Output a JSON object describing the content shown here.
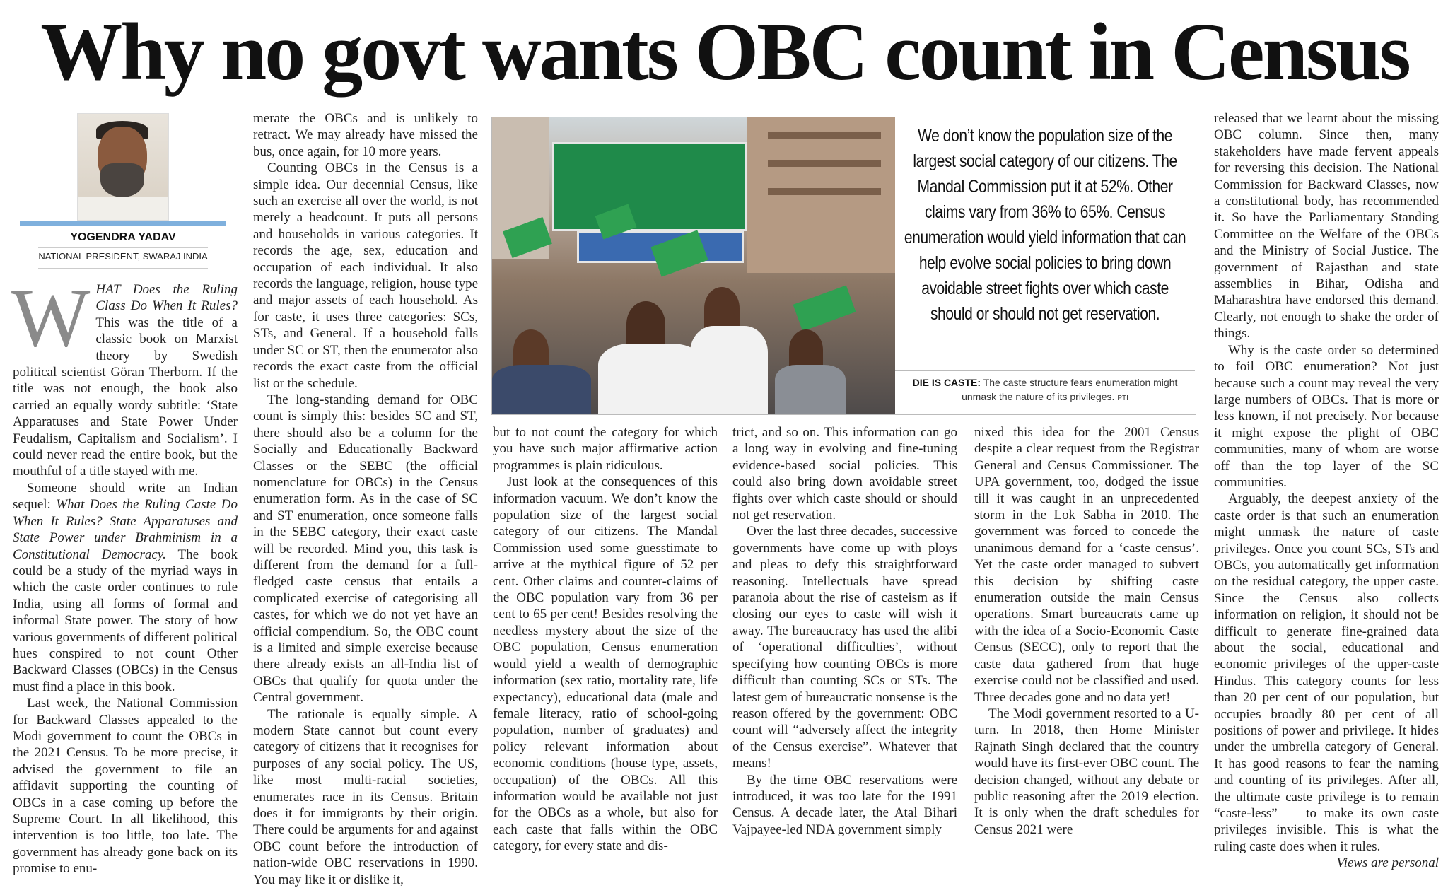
{
  "headline": "Why no govt wants OBC count in Census",
  "byline": {
    "name": "YOGENDRA YADAV",
    "title": "NATIONAL PRESIDENT, SWARAJ INDIA"
  },
  "figure": {
    "pull_quote": "We don’t know the population size of the largest social category of our citizens. The Mandal Commission put it at 52%. Other claims vary from 36% to 65%. Census enumeration would yield information that can help evolve social policies to bring down avoidable street fights over which caste should or should not get reservation.",
    "caption_label": "DIE IS CASTE:",
    "caption_text": " The caste structure fears enumeration might unmask the nature of its privileges.",
    "credit": "PTI"
  },
  "col1": {
    "dropcap": "W",
    "p1_italic": "HAT Does the Ruling Class Do When It Rules?",
    "p1_text": " This was the title of a classic book on Marxist theory by Swedish political scientist Göran Therborn. If the title was not enough, the book also carried an equally wordy subtitle: ‘State Apparatuses and State Power Under Feudalism, Capitalism and Socialism’. I could never read the entire book, but the mouthful of a title stayed with me.",
    "p2_start": "Someone should write an Indian sequel: ",
    "p2_italic": "What Does the Ruling Caste Do When It Rules? State Apparatuses and State Power under Brahminism in a Constitutional Democracy.",
    "p2_text": " The book could be a study of the myriad ways in which the caste order continues to rule India, using all forms of formal and informal State power. The story of how various governments of different political hues conspired to not count Other Backward Classes (OBCs) in the Census must find a place in this book.",
    "p3": "Last week, the National Commission for Backward Classes appealed to the Modi government to count the OBCs in the 2021 Census. To be more precise, it advised the government to file an affidavit supporting the counting of OBCs in a case coming up before the Supreme Court. In all likelihood, this intervention is too little, too late. The government has already gone back on its promise to enu-"
  },
  "col2": {
    "p0": "merate the OBCs and is unlikely to retract. We may already have missed the bus, once again, for 10 more years.",
    "p1": "Counting OBCs in the Census is a simple idea. Our decennial Census, like such an exercise all over the world, is not merely a headcount. It puts all persons and households in various categories. It records the age, sex, education and occupation of each individual. It also records the language, religion, house type and major assets of each household. As for caste, it uses three categories: SCs, STs, and General. If a household falls under SC or ST, then the enumerator also records the exact caste from the official list or the schedule.",
    "p2": "The long-standing demand for OBC count is simply this: besides SC and ST, there should also be a column for the Socially and Educationally Backward Classes or the SEBC (the official nomenclature for OBCs) in the Census enumeration form. As in the case of SC and ST enumeration, once someone falls in the SEBC category, their exact caste will be recorded. Mind you, this task is different from the demand for a full-fledged caste census that entails a complicated exercise of categorising all castes, for which we do not yet have an official compendium. So, the OBC count is a limited and simple exercise because there already exists an all-India list of OBCs that qualify for quota under the Central government.",
    "p3": "The rationale is equally simple. A modern State cannot but count every category of citizens that it recognises for purposes of any social policy. The US, like most multi-racial societies, enumerates race in its Census. Britain does it for immigrants by their origin. There could be arguments for and against OBC count before the introduction of nation-wide OBC reservations in 1990. You may like it or dislike it,"
  },
  "col3": {
    "p0": "but to not count the category for which you have such major affirmative action programmes is plain ridiculous.",
    "p1": "Just look at the consequences of this information vacuum. We don’t know the population size of the largest social category of our citizens. The Mandal Commission used some guesstimate to arrive at the mythical figure of 52 per cent. Other claims and counter-claims of the OBC population vary from 36 per cent to 65 per cent! Besides resolving the needless mystery about the size of the OBC population, Census enumeration would yield a wealth of demographic information (sex ratio, mortality rate, life expectancy), educational data (male and female literacy, ratio of school-going population, number of graduates) and policy relevant information about economic conditions (house type, assets, occupation) of the OBCs. All this information would be available not just for the OBCs as a whole, but also for each caste that falls within the OBC category, for every state and dis-"
  },
  "col4": {
    "p0": "trict, and so on. This information can go a long way in evolving and fine-tuning evidence-based social policies. This could also bring down avoidable street fights over which caste should or should not get reservation.",
    "p1": "Over the last three decades, successive governments have come up with ploys and pleas to defy this straightforward reasoning. Intellectuals have spread paranoia about the rise of casteism as if closing our eyes to caste will wish it away. The bureaucracy has used the alibi of ‘operational difficulties’, without specifying how counting OBCs is more difficult than counting SCs or STs. The latest gem of bureaucratic nonsense is the reason offered by the government: OBC count will “adversely affect the integrity of the Census exercise”. Whatever that means!",
    "p2": "By the time OBC reservations were introduced, it was too late for the 1991 Census. A decade later, the Atal Bihari Vajpayee-led NDA government simply"
  },
  "col5": {
    "p0": "nixed this idea for the 2001 Census despite a clear request from the Registrar General and Census Commissioner. The UPA government, too, dodged the issue till it was caught in an unprecedented storm in the Lok Sabha in 2010. The government was forced to concede the unanimous demand for a ‘caste census’. Yet the caste order managed to subvert this decision by shifting caste enumeration outside the main Census operations. Smart bureaucrats came up with the idea of a Socio-Economic Caste Census (SECC), only to report that the caste data gathered from that huge exercise could not be classified and used. Three decades gone and no data yet!",
    "p1": "The Modi government resorted to a U-turn. In 2018, then Home Minister Rajnath Singh declared that the country would have its first-ever OBC count. The decision changed, without any debate or public reasoning after the 2019 election. It is only when the draft schedules for Census 2021 were"
  },
  "col6": {
    "p0": "released that we learnt about the missing OBC column. Since then, many stakeholders have made fervent appeals for reversing this decision. The National Commission for Backward Classes, now a constitutional body, has recommended it. So have the Parliamentary Standing Committee on the Welfare of the OBCs and the Ministry of Social Justice. The government of Rajasthan and state assemblies in Bihar, Odisha and Maharashtra have endorsed this demand. Clearly, not enough to shake the order of things.",
    "p1": "Why is the caste order so determined to foil OBC enumeration? Not just because such a count may reveal the very large numbers of OBCs. That is more or less known, if not precisely. Nor because it might expose the plight of OBC communities, many of whom are worse off than the top layer of the SC communities.",
    "p2": "Arguably, the deepest anxiety of the caste order is that such an enumeration might unmask the nature of caste privileges. Once you count SCs, STs and OBCs, you automatically get information on the residual category, the upper caste. Since the Census also collects information on religion, it should not be difficult to generate fine-grained data about the social, educational and economic privileges of the upper-caste Hindus. This category counts for less than 20 per cent of our population, but occupies broadly 80 per cent of all positions of power and privilege. It hides under the umbrella category of General. It has good reasons to fear the naming and counting of its privileges. After all, the ultimate caste privilege is to remain “caste-less” — to make its own caste privileges invisible. This is what the ruling caste does when it rules.",
    "footer": "Views are personal"
  }
}
